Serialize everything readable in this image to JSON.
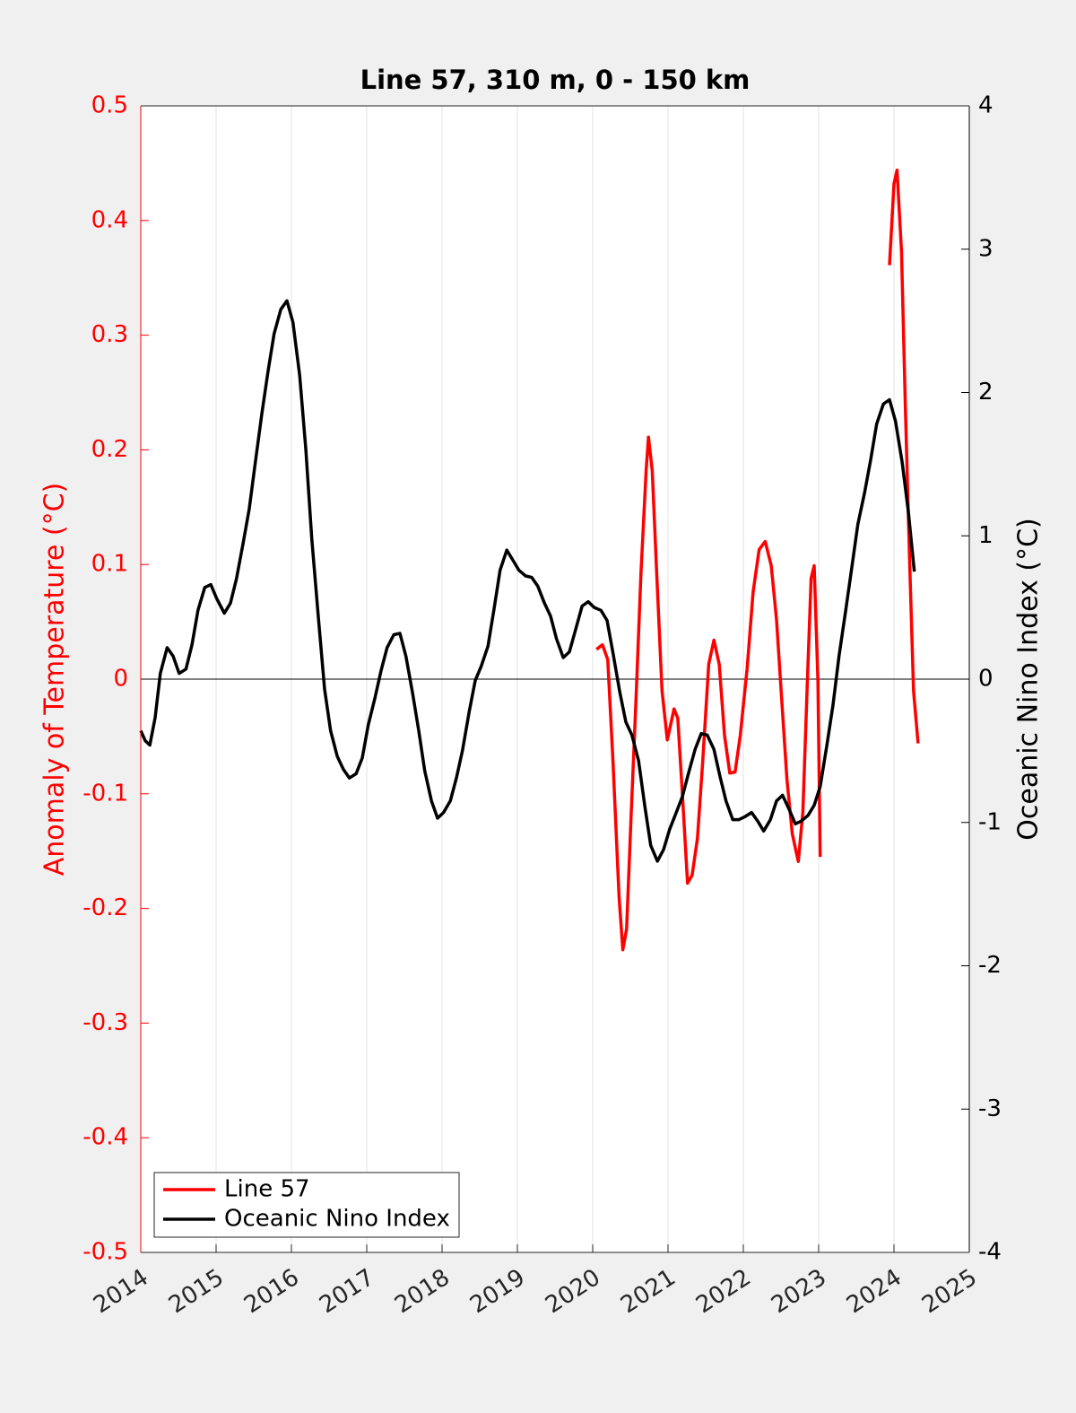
{
  "chart_data": {
    "type": "line",
    "title": "Line 57, 310 m, 0 - 150 km",
    "ylabel": "Anomaly of Temperature (°C)",
    "y2label": "Oceanic Nino Index (°C)",
    "xlim": [
      2014,
      2025
    ],
    "xticks": [
      2014,
      2015,
      2016,
      2017,
      2018,
      2019,
      2020,
      2021,
      2022,
      2023,
      2024,
      2025
    ],
    "ylim": [
      -0.5,
      0.5
    ],
    "yticks": [
      0.5,
      0.4,
      0.3,
      0.2,
      0.1,
      0,
      -0.1,
      -0.2,
      -0.3,
      -0.4,
      -0.5
    ],
    "y2lim": [
      -4,
      4
    ],
    "y2ticks": [
      4,
      3,
      2,
      1,
      0,
      -1,
      -2,
      -3,
      -4
    ],
    "ycolor": "#ff0000",
    "y2color": "#000000",
    "xgrid": true,
    "zero_line": true,
    "legend": "lower left",
    "series": [
      {
        "name": "Line 57",
        "color": "#ff0000",
        "x": [
          2020.05,
          2020.13,
          2020.2,
          2020.27,
          2020.35,
          2020.4,
          2020.45,
          2020.51,
          2020.58,
          2020.64,
          2020.71,
          2020.74,
          2020.79,
          2020.85,
          2020.92,
          2020.99,
          2021.04,
          2021.08,
          2021.13,
          2021.19,
          2021.26,
          2021.32,
          2021.39,
          2021.46,
          2021.54,
          2021.61,
          2021.68,
          2021.75,
          2021.82,
          2021.89,
          2021.96,
          2022.05,
          2022.13,
          2022.21,
          2022.29,
          2022.37,
          2022.44,
          2022.51,
          2022.58,
          2022.65,
          2022.73,
          2022.79,
          2022.85,
          2022.9,
          2022.94,
          2022.99,
          2023.02,
          2023.5,
          2023.94,
          2024.0,
          2024.04,
          2024.1,
          2024.15,
          2024.21,
          2024.26,
          2024.32
        ],
        "values": [
          0.026,
          0.03,
          0.017,
          -0.073,
          -0.19,
          -0.236,
          -0.218,
          -0.12,
          -0.01,
          0.092,
          0.182,
          0.211,
          0.182,
          0.092,
          -0.01,
          -0.053,
          -0.038,
          -0.026,
          -0.034,
          -0.1,
          -0.178,
          -0.171,
          -0.139,
          -0.073,
          0.013,
          0.034,
          0.013,
          -0.049,
          -0.082,
          -0.081,
          -0.049,
          0.009,
          0.076,
          0.113,
          0.12,
          0.099,
          0.052,
          -0.018,
          -0.088,
          -0.135,
          -0.159,
          -0.116,
          -0.002,
          0.088,
          0.099,
          -0.002,
          -0.155,
          null,
          0.361,
          0.432,
          0.444,
          0.373,
          0.24,
          0.099,
          -0.01,
          -0.056
        ]
      },
      {
        "name": "Oceanic Nino Index",
        "color": "#000000",
        "axis": "y2",
        "x": [
          2014.0,
          2014.06,
          2014.12,
          2014.19,
          2014.26,
          2014.35,
          2014.43,
          2014.51,
          2014.6,
          2014.68,
          2014.76,
          2014.85,
          2014.93,
          2015.01,
          2015.11,
          2015.19,
          2015.27,
          2015.36,
          2015.44,
          2015.52,
          2015.61,
          2015.69,
          2015.77,
          2015.86,
          2015.94,
          2016.02,
          2016.11,
          2016.19,
          2016.27,
          2016.36,
          2016.44,
          2016.52,
          2016.61,
          2016.69,
          2016.77,
          2016.86,
          2016.94,
          2017.02,
          2017.11,
          2017.19,
          2017.27,
          2017.36,
          2017.44,
          2017.52,
          2017.61,
          2017.69,
          2017.77,
          2017.86,
          2017.94,
          2018.02,
          2018.11,
          2018.19,
          2018.27,
          2018.36,
          2018.44,
          2018.52,
          2018.61,
          2018.69,
          2018.77,
          2018.86,
          2018.94,
          2019.02,
          2019.11,
          2019.19,
          2019.27,
          2019.36,
          2019.44,
          2019.52,
          2019.61,
          2019.69,
          2019.77,
          2019.86,
          2019.94,
          2020.02,
          2020.11,
          2020.19,
          2020.27,
          2020.36,
          2020.44,
          2020.52,
          2020.61,
          2020.69,
          2020.77,
          2020.86,
          2020.94,
          2021.02,
          2021.11,
          2021.19,
          2021.27,
          2021.36,
          2021.44,
          2021.52,
          2021.61,
          2021.69,
          2021.77,
          2021.86,
          2021.94,
          2022.02,
          2022.11,
          2022.19,
          2022.27,
          2022.36,
          2022.44,
          2022.52,
          2022.61,
          2022.69,
          2022.77,
          2022.86,
          2022.94,
          2023.02,
          2023.11,
          2023.19,
          2023.27,
          2023.36,
          2023.44,
          2023.52,
          2023.61,
          2023.69,
          2023.77,
          2023.86,
          2023.94,
          2024.02,
          2024.11,
          2024.19,
          2024.27
        ],
        "values": [
          -0.36,
          -0.43,
          -0.46,
          -0.27,
          0.04,
          0.22,
          0.16,
          0.04,
          0.07,
          0.24,
          0.48,
          0.64,
          0.66,
          0.56,
          0.46,
          0.53,
          0.7,
          0.95,
          1.19,
          1.51,
          1.86,
          2.15,
          2.41,
          2.58,
          2.64,
          2.49,
          2.12,
          1.61,
          0.98,
          0.42,
          -0.07,
          -0.36,
          -0.54,
          -0.63,
          -0.69,
          -0.66,
          -0.55,
          -0.32,
          -0.13,
          0.06,
          0.22,
          0.31,
          0.32,
          0.16,
          -0.1,
          -0.36,
          -0.64,
          -0.85,
          -0.97,
          -0.93,
          -0.85,
          -0.69,
          -0.5,
          -0.23,
          -0.01,
          0.09,
          0.23,
          0.49,
          0.76,
          0.9,
          0.83,
          0.76,
          0.72,
          0.71,
          0.65,
          0.53,
          0.44,
          0.28,
          0.15,
          0.19,
          0.34,
          0.51,
          0.54,
          0.5,
          0.48,
          0.41,
          0.18,
          -0.09,
          -0.3,
          -0.39,
          -0.57,
          -0.88,
          -1.16,
          -1.27,
          -1.19,
          -1.05,
          -0.93,
          -0.82,
          -0.66,
          -0.49,
          -0.38,
          -0.39,
          -0.49,
          -0.68,
          -0.85,
          -0.98,
          -0.98,
          -0.96,
          -0.93,
          -0.99,
          -1.06,
          -0.98,
          -0.85,
          -0.81,
          -0.91,
          -1.01,
          -0.99,
          -0.95,
          -0.88,
          -0.75,
          -0.46,
          -0.18,
          0.16,
          0.48,
          0.78,
          1.08,
          1.3,
          1.53,
          1.78,
          1.92,
          1.95,
          1.8,
          1.51,
          1.17,
          0.75
        ]
      }
    ]
  }
}
